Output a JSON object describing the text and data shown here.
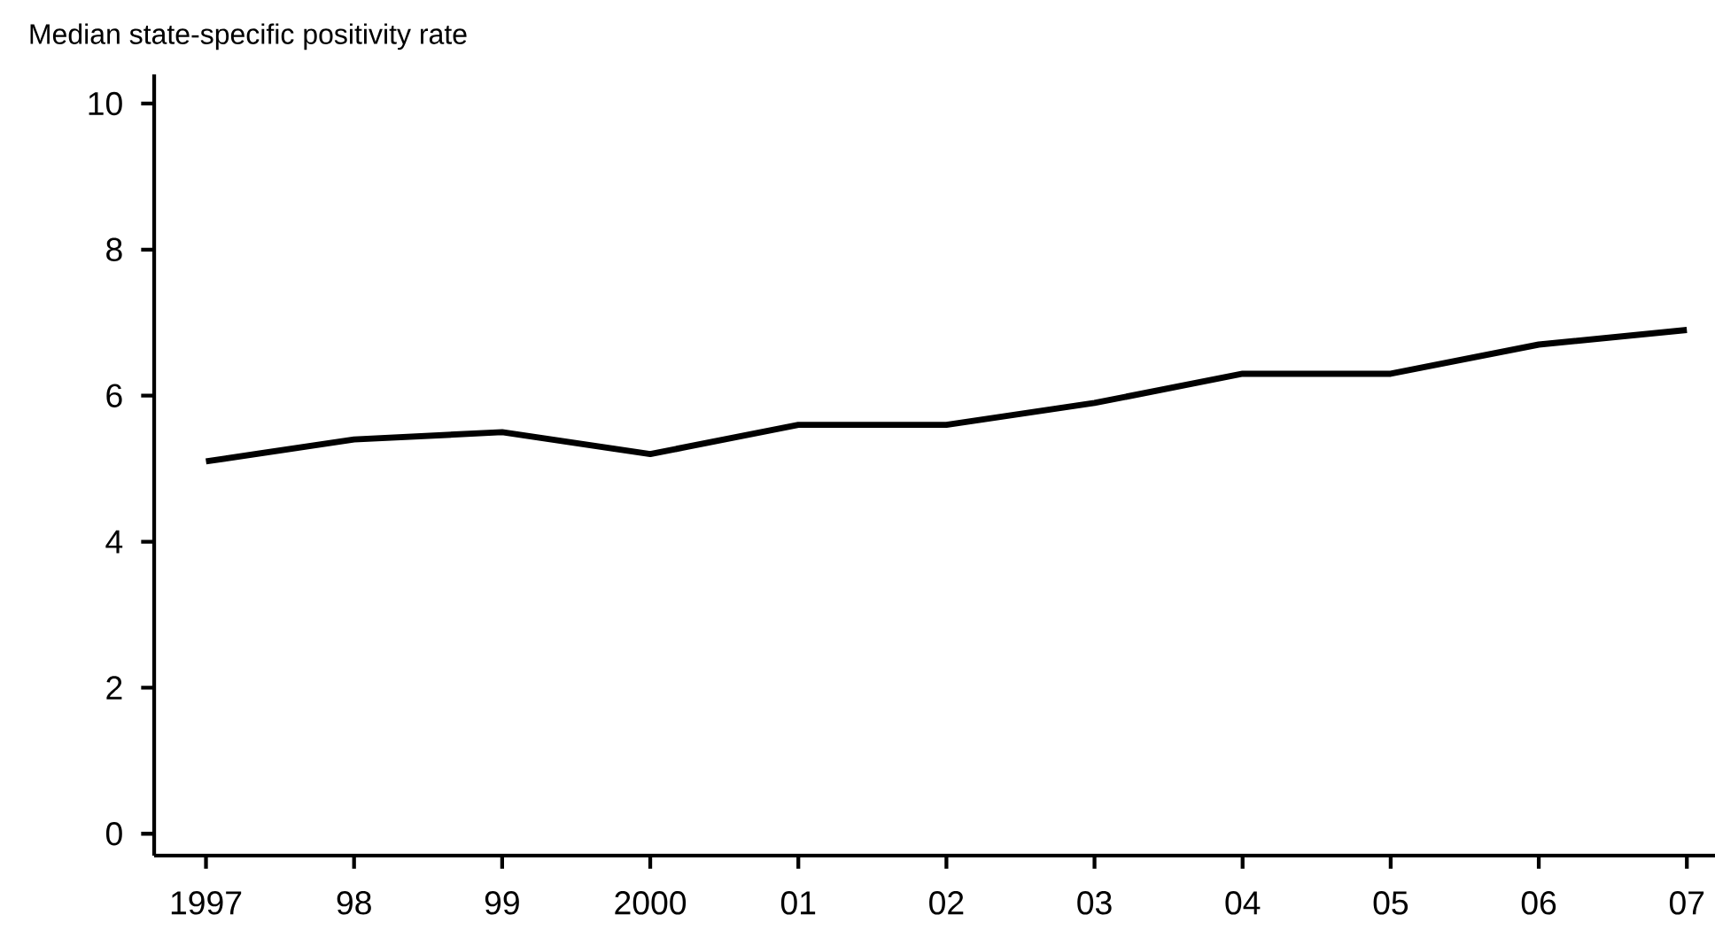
{
  "chart_data": {
    "type": "line",
    "ylabel": "Median state-specific positivity rate",
    "categories": [
      "1997",
      "98",
      "99",
      "2000",
      "01",
      "02",
      "03",
      "04",
      "05",
      "06",
      "07"
    ],
    "values": [
      5.1,
      5.4,
      5.5,
      5.2,
      5.6,
      5.6,
      5.9,
      6.3,
      6.3,
      6.7,
      6.9
    ],
    "color": "#000000",
    "line_style": "solid",
    "ylim": [
      -0.3,
      10.4
    ],
    "yticks": [
      0,
      2,
      4,
      6,
      8,
      10
    ],
    "grid": false
  }
}
